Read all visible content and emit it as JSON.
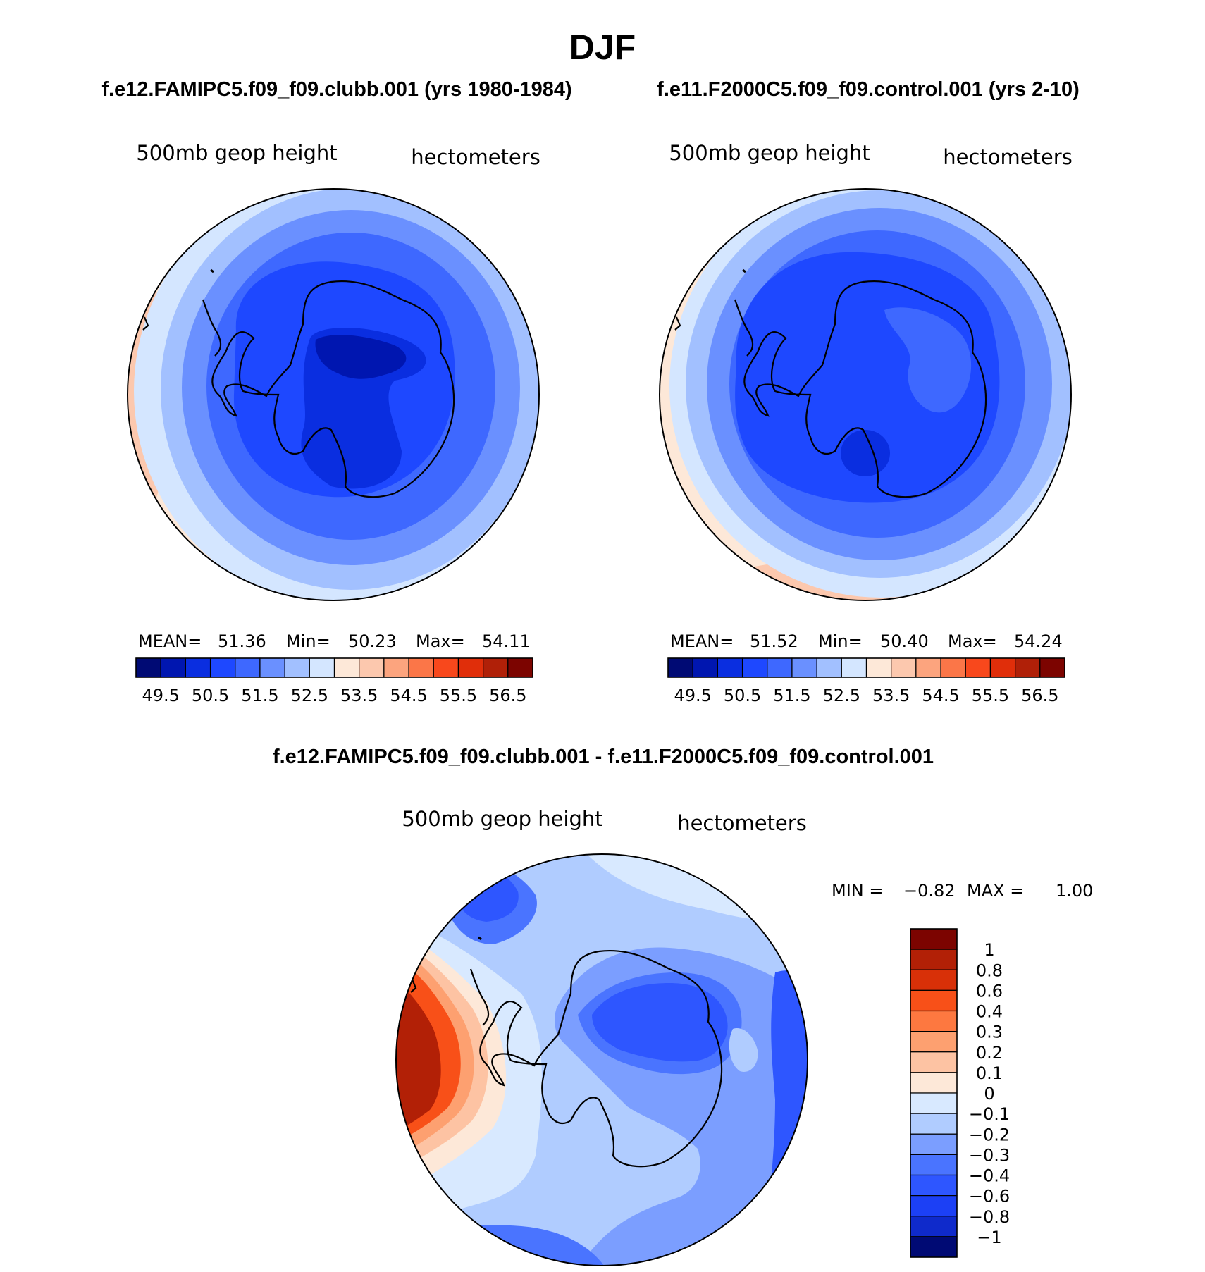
{
  "chart_data": {
    "season": "DJF",
    "type": "contour",
    "colors": {
      "seq_scale": [
        "#000a74",
        "#0016b0",
        "#0a2ee0",
        "#1e48ff",
        "#3e68ff",
        "#6a90ff",
        "#a2c0ff",
        "#d4e6ff",
        "#fde8d8",
        "#fcc8ae",
        "#fca47e",
        "#fb7648",
        "#f8481c",
        "#e02e0a",
        "#b02008",
        "#7c0400"
      ],
      "diff_scale": [
        "#000a74",
        "#0f2acb",
        "#1c40f5",
        "#2e56ff",
        "#4a74ff",
        "#7b9eff",
        "#b0ccff",
        "#d8e9ff",
        "#fde8d8",
        "#fdc3a3",
        "#fda070",
        "#fd7840",
        "#f85018",
        "#d83008",
        "#b22006",
        "#7c0400"
      ]
    },
    "panels": [
      {
        "id": "left",
        "title": "f.e12.FAMIPC5.f09_f09.clubb.001 (yrs 1980-1984)",
        "variable": "500mb geop height",
        "units": "hectometers",
        "stats": {
          "mean_label": "MEAN=",
          "mean": "51.36",
          "min_label": "Min=",
          "min": "50.23",
          "max_label": "Max=",
          "max": "54.11"
        },
        "colorbar_ticks": [
          "49.5",
          "50.5",
          "51.5",
          "52.5",
          "53.5",
          "54.5",
          "55.5",
          "56.5"
        ]
      },
      {
        "id": "right",
        "title": "f.e11.F2000C5.f09_f09.control.001 (yrs 2-10)",
        "variable": "500mb geop height",
        "units": "hectometers",
        "stats": {
          "mean_label": "MEAN=",
          "mean": "51.52",
          "min_label": "Min=",
          "min": "50.40",
          "max_label": "Max=",
          "max": "54.24"
        },
        "colorbar_ticks": [
          "49.5",
          "50.5",
          "51.5",
          "52.5",
          "53.5",
          "54.5",
          "55.5",
          "56.5"
        ]
      },
      {
        "id": "diff",
        "title": "f.e12.FAMIPC5.f09_f09.clubb.001 - f.e11.F2000C5.f09_f09.control.001",
        "variable": "500mb geop height",
        "units": "hectometers",
        "stats": {
          "min_label": "MIN =",
          "min": "−0.82",
          "max_label": "MAX =",
          "max": "1.00"
        },
        "colorbar_ticks": [
          "1",
          "0.8",
          "0.6",
          "0.4",
          "0.3",
          "0.2",
          "0.1",
          "0",
          "−0.1",
          "−0.2",
          "−0.3",
          "−0.4",
          "−0.6",
          "−0.8",
          "−1"
        ]
      }
    ]
  }
}
